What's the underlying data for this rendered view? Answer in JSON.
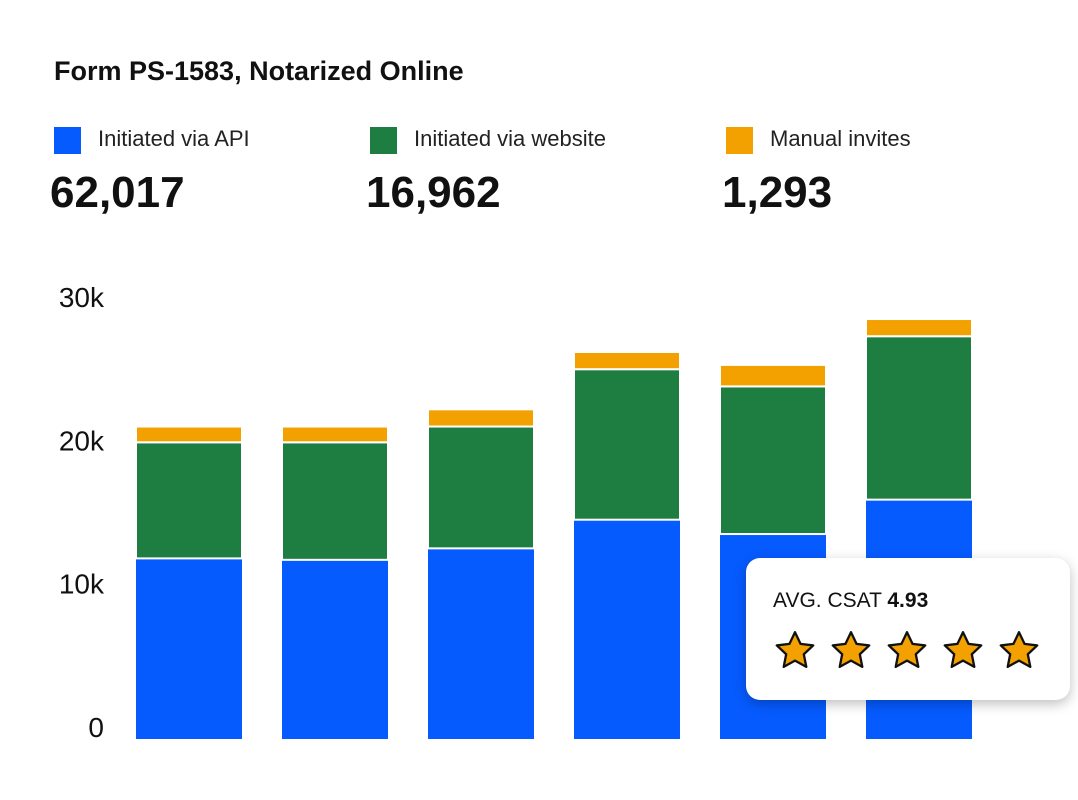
{
  "title": "Form PS-1583, Notarized Online",
  "legend": [
    {
      "label": "Initiated via API",
      "total": "62,017",
      "color": "#065bff"
    },
    {
      "label": "Initiated via website",
      "total": "16,962",
      "color": "#1e7e41"
    },
    {
      "label": "Manual invites",
      "total": "1,293",
      "color": "#f2a100"
    }
  ],
  "csat": {
    "label": "AVG. CSAT",
    "value": "4.93",
    "stars": 5,
    "star_color": "#f2a100"
  },
  "chart_data": {
    "type": "bar",
    "stacked": true,
    "title": "Form PS-1583, Notarized Online",
    "categories": [
      "",
      "",
      "",
      "",
      "",
      ""
    ],
    "series": [
      {
        "name": "Initiated via API",
        "values": [
          12600,
          12500,
          13300,
          15300,
          14300,
          16700
        ]
      },
      {
        "name": "Initiated via website",
        "values": [
          8100,
          8200,
          8500,
          10500,
          10300,
          11400
        ]
      },
      {
        "name": "Manual invites",
        "values": [
          1100,
          1100,
          1200,
          1200,
          1500,
          1200
        ]
      }
    ],
    "yticks": [
      "0",
      "10k",
      "20k",
      "30k"
    ],
    "ylim": [
      0,
      30000
    ],
    "grid": false,
    "legend_placement": "top"
  }
}
